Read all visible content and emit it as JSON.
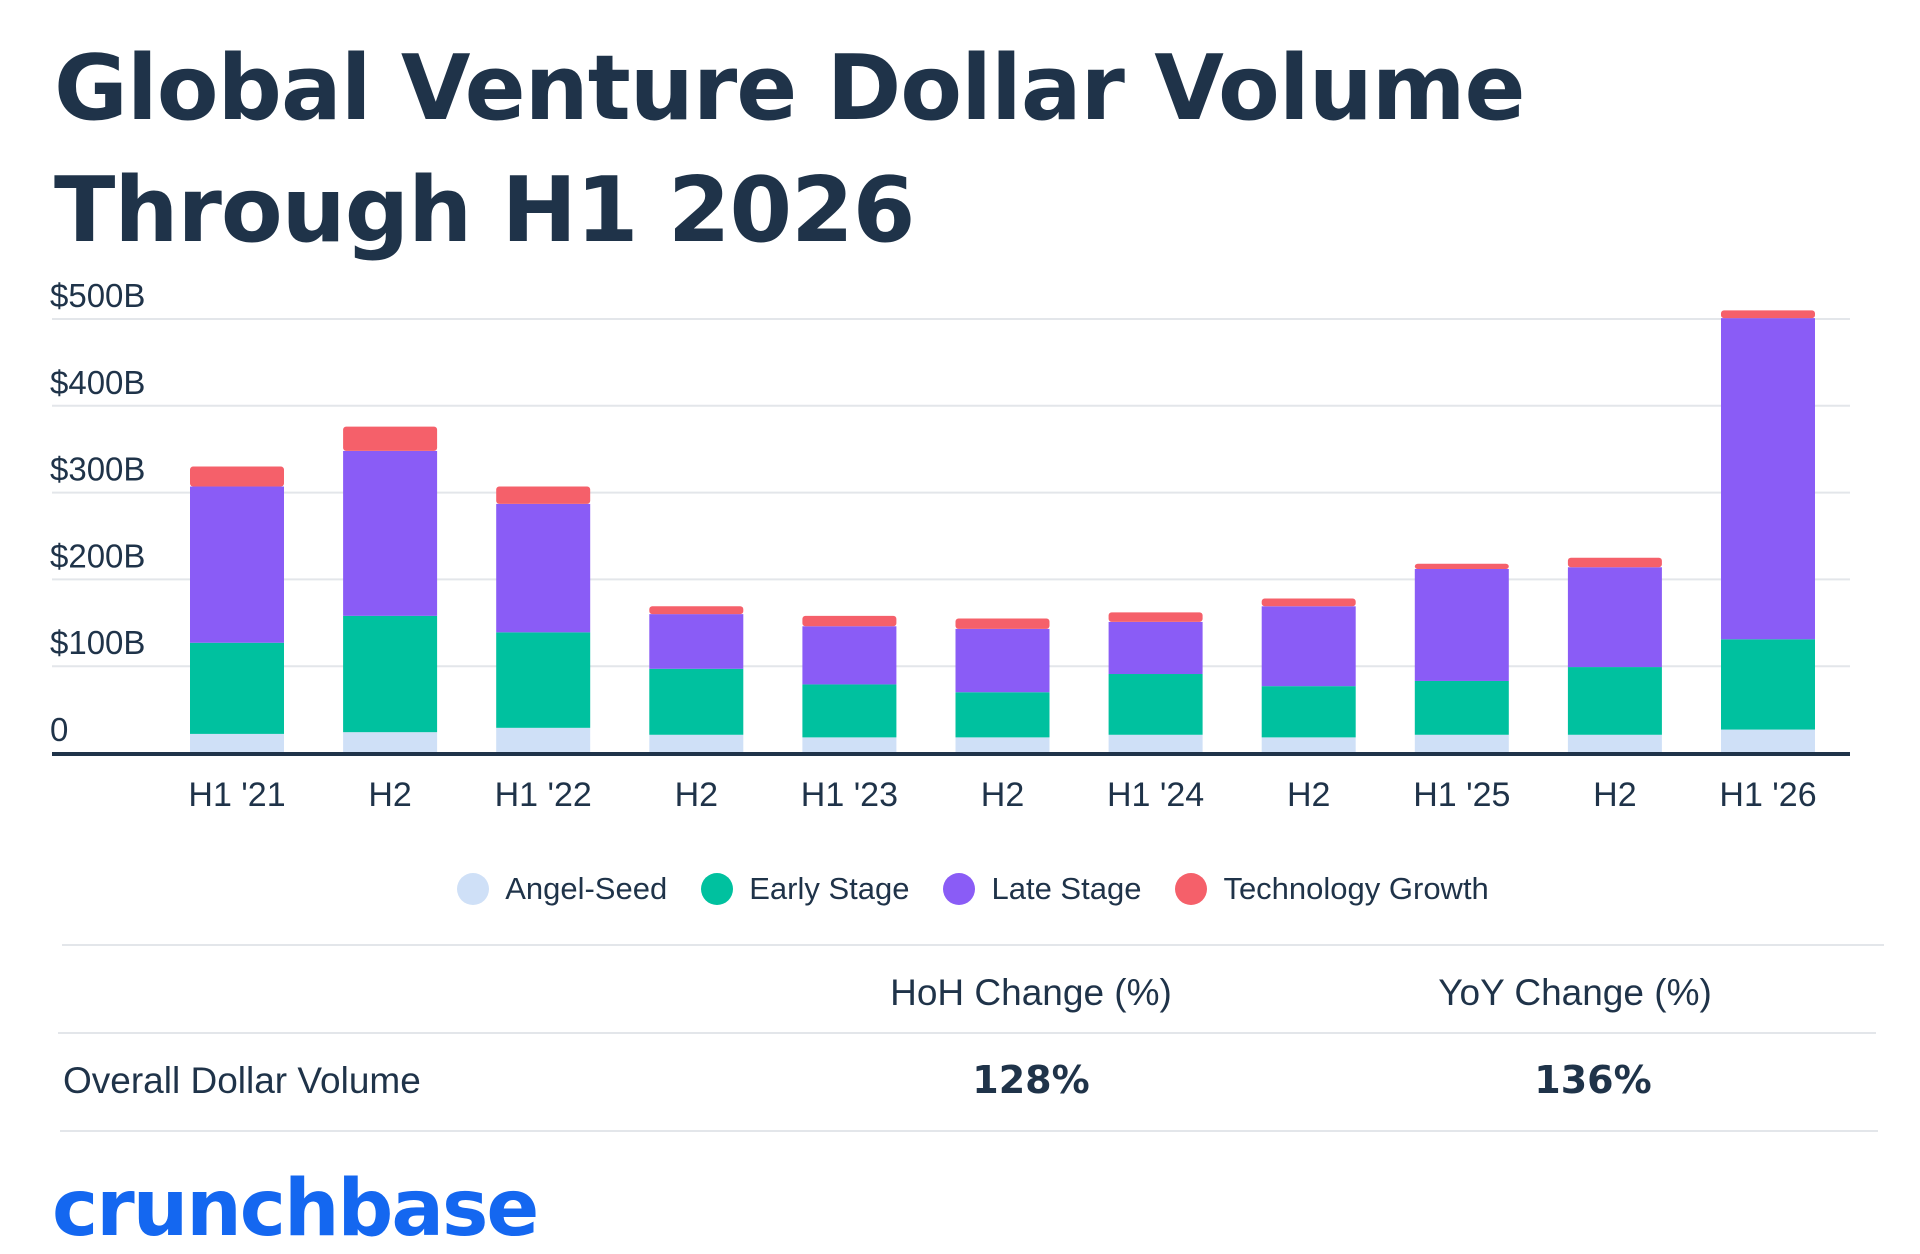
{
  "title": "Global Venture Dollar Volume Through H1 2026",
  "colors": {
    "angel_seed": "#cfe0f7",
    "early_stage": "#00c19f",
    "late_stage": "#8a5cf6",
    "technology_growth": "#f5606a",
    "axis": "#1f3349",
    "grid": "#e3e6ea",
    "brand": "#1467f0"
  },
  "chart_data": {
    "type": "bar",
    "stacked": true,
    "title": "Global Venture Dollar Volume Through H1 2026",
    "categories": [
      "H1 '21",
      "H2",
      "H1 '22",
      "H2",
      "H1 '23",
      "H2",
      "H1 '24",
      "H2",
      "H1 '25",
      "H2",
      "H1 '26"
    ],
    "series": [
      {
        "name": "Angel-Seed",
        "values": [
          22,
          24,
          29,
          21,
          18,
          18,
          21,
          18,
          21,
          21,
          27
        ]
      },
      {
        "name": "Early Stage",
        "values": [
          105,
          134,
          110,
          76,
          61,
          52,
          70,
          59,
          62,
          78,
          104
        ]
      },
      {
        "name": "Late Stage",
        "values": [
          180,
          190,
          148,
          63,
          67,
          73,
          60,
          92,
          129,
          115,
          370
        ]
      },
      {
        "name": "Technology Growth",
        "values": [
          23,
          28,
          20,
          9,
          12,
          12,
          11,
          9,
          6,
          11,
          9
        ]
      }
    ],
    "y_ticks": [
      "0",
      "$100B",
      "$200B",
      "$300B",
      "$400B",
      "$500B"
    ],
    "ylim": [
      0,
      500
    ],
    "grid": true,
    "legend_position": "bottom-center"
  },
  "legend": [
    {
      "label": "Angel-Seed",
      "color": "#cfe0f7"
    },
    {
      "label": "Early Stage",
      "color": "#00c19f"
    },
    {
      "label": "Late Stage",
      "color": "#8a5cf6"
    },
    {
      "label": "Technology Growth",
      "color": "#f5606a"
    }
  ],
  "table": {
    "headers": [
      "HoH Change (%)",
      "YoY Change (%)"
    ],
    "row_label": "Overall Dollar Volume",
    "values": [
      "128%",
      "136%"
    ]
  },
  "logo": "crunchbase"
}
